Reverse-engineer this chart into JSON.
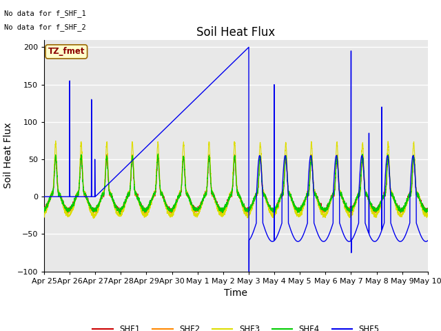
{
  "title": "Soil Heat Flux",
  "xlabel": "Time",
  "ylabel": "Soil Heat Flux",
  "ylim": [
    -100,
    210
  ],
  "yticks": [
    -100,
    -50,
    0,
    50,
    100,
    150,
    200
  ],
  "x_tick_labels": [
    "Apr 25",
    "Apr 26",
    "Apr 27",
    "Apr 28",
    "Apr 29",
    "Apr 30",
    "May 1",
    "May 2",
    "May 3",
    "May 4",
    "May 5",
    "May 6",
    "May 7",
    "May 8",
    "May 9",
    "May 10"
  ],
  "x_tick_positions": [
    0,
    1,
    2,
    3,
    4,
    5,
    6,
    7,
    8,
    9,
    10,
    11,
    12,
    13,
    14,
    15
  ],
  "legend_entries": [
    "SHF1",
    "SHF2",
    "SHF3",
    "SHF4",
    "SHF5"
  ],
  "legend_colors": [
    "#cc0000",
    "#ff8800",
    "#dddd00",
    "#00cc00",
    "#0000ee"
  ],
  "annotation_no_data": [
    "No data for f_SHF_1",
    "No data for f_SHF_2"
  ],
  "tz_label": "TZ_fmet",
  "bg_color": "#e8e8e8",
  "title_fontsize": 12,
  "axis_label_fontsize": 10,
  "tick_fontsize": 8
}
